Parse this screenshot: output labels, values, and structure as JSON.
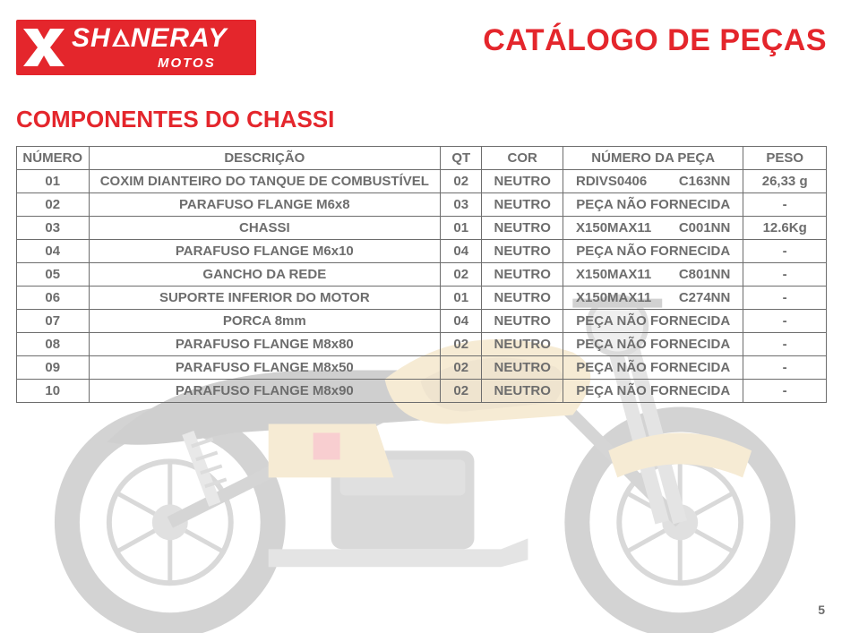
{
  "brand": {
    "name_pre": "SH",
    "name_post": "NERAY",
    "sub": "MOTOS"
  },
  "catalog_title": "CATÁLOGO DE PEÇAS",
  "section_title": "COMPONENTES DO CHASSI",
  "table": {
    "headers": {
      "numero": "NÚMERO",
      "descricao": "DESCRIÇÃO",
      "qt": "QT",
      "cor": "COR",
      "numero_peca": "NÚMERO DA PEÇA",
      "peso": "PESO"
    },
    "rows": [
      {
        "numero": "01",
        "descricao": "COXIM DIANTEIRO DO TANQUE DE COMBUSTÍVEL",
        "qt": "02",
        "cor": "NEUTRO",
        "numero_peca": "RDIVS0406",
        "codigo": "C163NN",
        "peso": "26,33 g"
      },
      {
        "numero": "02",
        "descricao": "PARAFUSO FLANGE M6x8",
        "qt": "03",
        "cor": "NEUTRO",
        "numero_peca": "PEÇA NÃO FORNECIDA",
        "codigo": "",
        "peso": "-"
      },
      {
        "numero": "03",
        "descricao": "CHASSI",
        "qt": "01",
        "cor": "NEUTRO",
        "numero_peca": "X150MAX11",
        "codigo": "C001NN",
        "peso": "12.6Kg"
      },
      {
        "numero": "04",
        "descricao": "PARAFUSO FLANGE M6x10",
        "qt": "04",
        "cor": "NEUTRO",
        "numero_peca": "PEÇA NÃO FORNECIDA",
        "codigo": "",
        "peso": "-"
      },
      {
        "numero": "05",
        "descricao": "GANCHO DA REDE",
        "qt": "02",
        "cor": "NEUTRO",
        "numero_peca": "X150MAX11",
        "codigo": "C801NN",
        "peso": "-"
      },
      {
        "numero": "06",
        "descricao": "SUPORTE INFERIOR DO MOTOR",
        "qt": "01",
        "cor": "NEUTRO",
        "numero_peca": "X150MAX11",
        "codigo": "C274NN",
        "peso": "-"
      },
      {
        "numero": "07",
        "descricao": "PORCA 8mm",
        "qt": "04",
        "cor": "NEUTRO",
        "numero_peca": "PEÇA NÃO FORNECIDA",
        "codigo": "",
        "peso": "-"
      },
      {
        "numero": "08",
        "descricao": "PARAFUSO FLANGE M8x80",
        "qt": "02",
        "cor": "NEUTRO",
        "numero_peca": "PEÇA NÃO FORNECIDA",
        "codigo": "",
        "peso": "-"
      },
      {
        "numero": "09",
        "descricao": "PARAFUSO FLANGE M8x50",
        "qt": "02",
        "cor": "NEUTRO",
        "numero_peca": "PEÇA NÃO FORNECIDA",
        "codigo": "",
        "peso": "-"
      },
      {
        "numero": "10",
        "descricao": "PARAFUSO FLANGE M8x90",
        "qt": "02",
        "cor": "NEUTRO",
        "numero_peca": "PEÇA NÃO FORNECIDA",
        "codigo": "",
        "peso": "-"
      }
    ]
  },
  "page_number": "5",
  "colors": {
    "accent": "#e4262c",
    "text": "#6d6d6d",
    "border": "#6d6d6d",
    "moto_body": "#d9a940",
    "moto_dark": "#3a3a3a",
    "moto_tire": "#555555"
  }
}
